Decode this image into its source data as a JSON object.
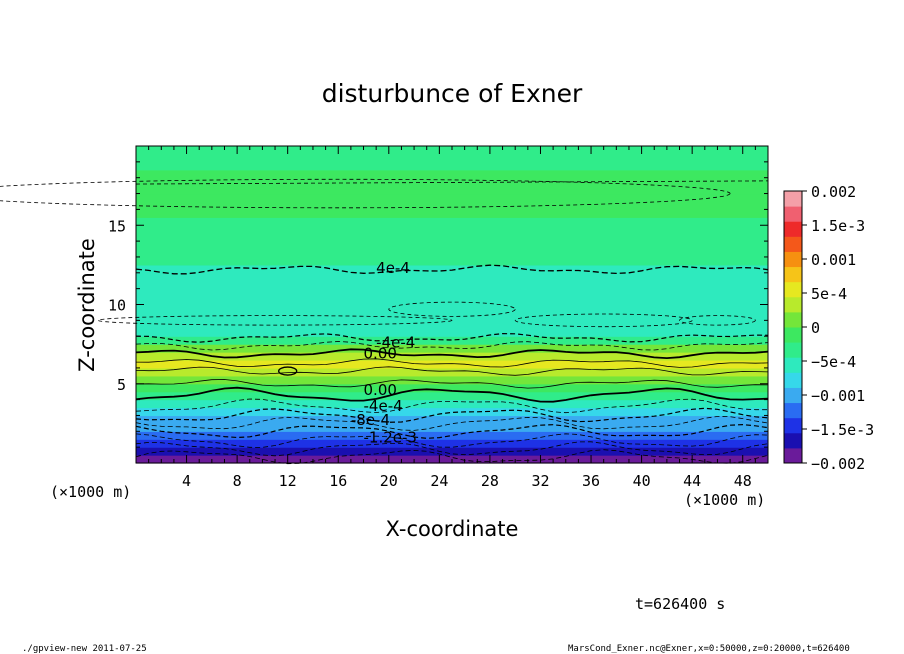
{
  "chart_data": {
    "type": "heatmap",
    "title": "disturbunce of Exner",
    "xlabel": "X-coordinate",
    "ylabel": "Z-coordinate",
    "x_unit_label": "(×1000 m)",
    "y_unit_label": "(×1000 m)",
    "xlim": [
      0,
      50
    ],
    "ylim": [
      0,
      20
    ],
    "x_ticks": [
      4,
      8,
      12,
      16,
      20,
      24,
      28,
      32,
      36,
      40,
      44,
      48
    ],
    "y_ticks": [
      5,
      10,
      15
    ],
    "grid": false,
    "colorbar": {
      "min": -0.002,
      "max": 0.002,
      "tick_labels": [
        "0.002",
        "1.5e-3",
        "0.001",
        "5e-4",
        "0",
        "−5e-4",
        "−0.001",
        "−1.5e-3",
        "−0.002"
      ],
      "colors": [
        "#6a1b9a",
        "#1a0fb0",
        "#1e32e6",
        "#2a6cf2",
        "#3aaaf0",
        "#36d8ea",
        "#2eeabe",
        "#30ec8a",
        "#3de860",
        "#74e63a",
        "#b8ea2c",
        "#e6e820",
        "#f6c418",
        "#f69010",
        "#f4581a",
        "#ee2a2a",
        "#f06070",
        "#f4a0a8"
      ],
      "position": "right"
    },
    "contour_labels": [
      "4e-4",
      "-4e-4",
      "0.00",
      "0.00",
      "-4e-4",
      "-8e-4",
      "-1.2e-3"
    ],
    "z_levels": [
      0,
      0.5,
      1,
      1.5,
      2,
      2.5,
      3,
      3.5,
      4,
      4.5,
      5,
      5.5,
      6,
      6.5,
      7,
      7.5,
      8,
      9,
      11,
      12.5,
      14,
      15.5,
      17,
      18.5,
      20
    ],
    "values": [
      -0.002,
      -0.0018,
      -0.0016,
      -0.0014,
      -0.0012,
      -0.001,
      -0.0008,
      -0.0006,
      -0.0004,
      -0.0002,
      0.0,
      0.0002,
      0.0004,
      0.0006,
      0.0002,
      -0.0002,
      -0.0004,
      -0.0005,
      -0.0006,
      -0.0004,
      -0.0003,
      -0.0002,
      -0.0001,
      -0.0002,
      -0.0003
    ],
    "time_label": "t=626400 s",
    "footer_left": "./gpview-new   2011-07-25",
    "footer_right": "MarsCond_Exner.nc@Exner,x=0:50000,z=0:20000,t=626400"
  }
}
